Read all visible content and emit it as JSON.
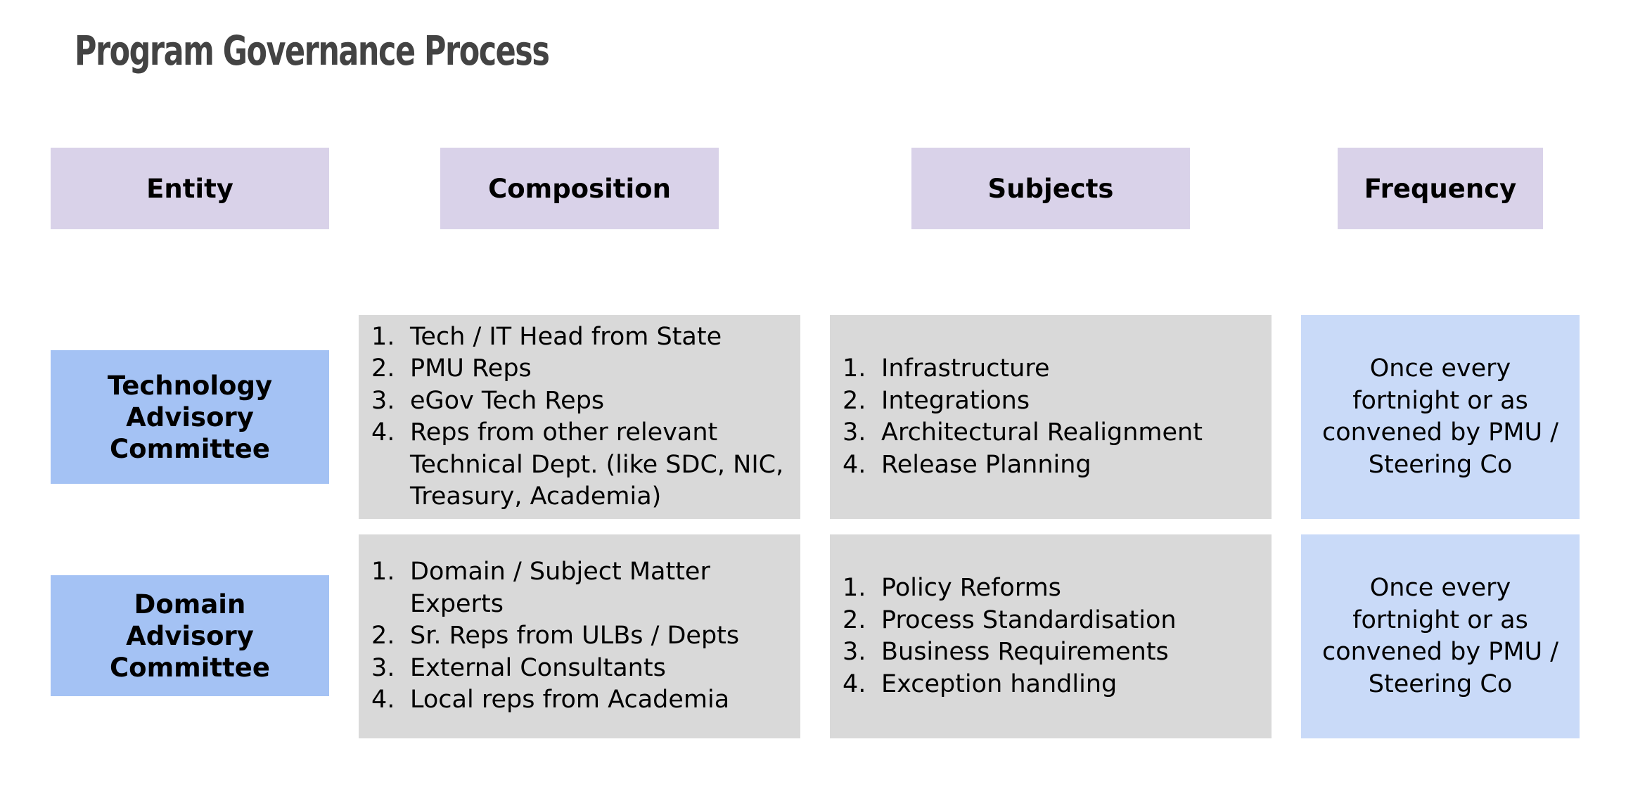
{
  "title": "Program Governance Process",
  "headers": {
    "entity": "Entity",
    "composition": "Composition",
    "subjects": "Subjects",
    "frequency": "Frequency"
  },
  "rows": [
    {
      "entity": "Technology Advisory Committee",
      "composition": [
        {
          "num": "1.",
          "text": "Tech / IT Head from State"
        },
        {
          "num": "2.",
          "text": "PMU Reps"
        },
        {
          "num": "3.",
          "text": "eGov Tech Reps"
        },
        {
          "num": "4.",
          "text": "Reps from other relevant Technical Dept. (like SDC, NIC, Treasury, Academia)"
        }
      ],
      "subjects": [
        {
          "num": "1.",
          "text": "Infrastructure"
        },
        {
          "num": "2.",
          "text": "Integrations"
        },
        {
          "num": "3.",
          "text": "Architectural Realignment"
        },
        {
          "num": "4.",
          "text": "Release Planning"
        }
      ],
      "frequency": "Once every fortnight or as convened by PMU / Steering Co"
    },
    {
      "entity": "Domain Advisory Committee",
      "composition": [
        {
          "num": "1.",
          "text": "Domain / Subject Matter Experts"
        },
        {
          "num": "2.",
          "text": "Sr. Reps from ULBs / Depts"
        },
        {
          "num": "3.",
          "text": "External Consultants"
        },
        {
          "num": "4.",
          "text": "Local reps from Academia"
        }
      ],
      "subjects": [
        {
          "num": "1.",
          "text": "Policy Reforms"
        },
        {
          "num": "2.",
          "text": "Process Standardisation"
        },
        {
          "num": "3.",
          "text": "Business Requirements"
        },
        {
          "num": "4.",
          "text": "Exception handling"
        }
      ],
      "frequency": "Once every fortnight or as convened by PMU / Steering Co"
    }
  ],
  "colors": {
    "header_bg": "#d9d2e9",
    "entity_bg": "#a4c2f4",
    "list_bg": "#d9d9d9",
    "frequency_bg": "#c9daf8",
    "title": "#434343"
  }
}
